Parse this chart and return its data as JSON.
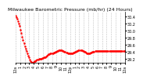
{
  "title": "Milwaukee Barometric Pressure (mb/hr) (24 Hours)",
  "line_color": "#ff0000",
  "bg_color": "#ffffff",
  "plot_bg": "#ffffff",
  "grid_color": "#b0b0b0",
  "yticks": [
    29.2,
    29.4,
    29.6,
    29.8,
    30.0,
    30.2,
    30.4
  ],
  "ylim": [
    29.1,
    30.52
  ],
  "xlim": [
    0,
    144
  ],
  "pressure_values": [
    30.42,
    30.38,
    30.33,
    30.27,
    30.2,
    30.12,
    30.03,
    29.93,
    29.83,
    29.73,
    29.64,
    29.56,
    29.49,
    29.42,
    29.36,
    29.3,
    29.24,
    29.19,
    29.15,
    29.12,
    29.1,
    29.1,
    29.11,
    29.13,
    29.15,
    29.17,
    29.18,
    29.19,
    29.2,
    29.2,
    29.2,
    29.21,
    29.22,
    29.23,
    29.24,
    29.25,
    29.26,
    29.27,
    29.29,
    29.31,
    29.33,
    29.34,
    29.35,
    29.35,
    29.36,
    29.37,
    29.38,
    29.39,
    29.4,
    29.41,
    29.42,
    29.43,
    29.44,
    29.44,
    29.44,
    29.44,
    29.44,
    29.43,
    29.42,
    29.41,
    29.4,
    29.39,
    29.38,
    29.37,
    29.37,
    29.37,
    29.37,
    29.37,
    29.37,
    29.37,
    29.38,
    29.39,
    29.4,
    29.41,
    29.42,
    29.43,
    29.44,
    29.44,
    29.44,
    29.44,
    29.44,
    29.43,
    29.42,
    29.41,
    29.4,
    29.38,
    29.37,
    29.36,
    29.36,
    29.36,
    29.37,
    29.38,
    29.39,
    29.4,
    29.41,
    29.41,
    29.42,
    29.42,
    29.42,
    29.42,
    29.42,
    29.42,
    29.42,
    29.42,
    29.42,
    29.42,
    29.42,
    29.42,
    29.42,
    29.42,
    29.42,
    29.42,
    29.42,
    29.42,
    29.42,
    29.42,
    29.42,
    29.42,
    29.42,
    29.42,
    29.42,
    29.42,
    29.42,
    29.42,
    29.42,
    29.42,
    29.42,
    29.42,
    29.42,
    29.42,
    29.42,
    29.42,
    29.42
  ],
  "x_tick_positions": [
    0,
    6,
    12,
    18,
    24,
    30,
    36,
    42,
    48,
    54,
    60,
    66,
    72,
    78,
    84,
    90,
    96,
    102,
    108,
    114,
    120,
    126,
    132,
    138,
    144
  ],
  "x_tick_labels": [
    "12a",
    "1",
    "2",
    "3",
    "4",
    "5",
    "6",
    "7",
    "8",
    "9",
    "10",
    "11",
    "12p",
    "1",
    "2",
    "3",
    "4",
    "5",
    "6",
    "7",
    "8",
    "9",
    "10",
    "11",
    "12a"
  ],
  "title_fontsize": 4.5,
  "tick_fontsize": 3.5,
  "markersize": 1.5
}
